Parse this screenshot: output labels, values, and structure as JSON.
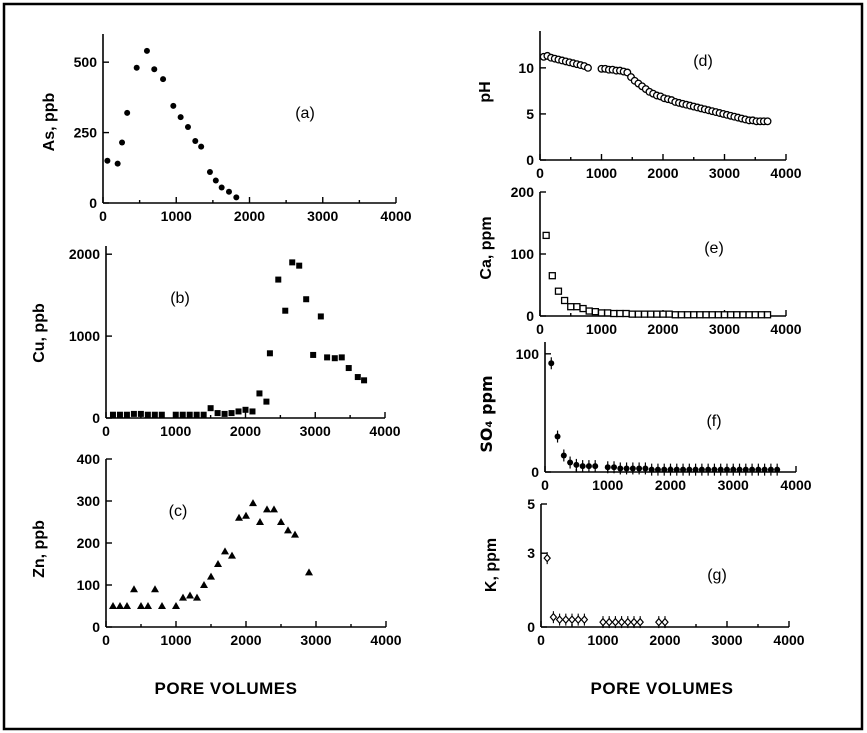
{
  "figure": {
    "x_title_left": "PORE VOLUMES",
    "x_title_right": "PORE VOLUMES"
  },
  "chart_data": [
    {
      "id": "a",
      "label": "(a)",
      "type": "scatter",
      "xlabel": "",
      "ylabel": "As, ppb",
      "xlim": [
        0,
        4000
      ],
      "ylim": [
        0,
        600
      ],
      "xticks": [
        0,
        1000,
        2000,
        3000,
        4000
      ],
      "yticks": [
        0,
        250,
        500
      ],
      "marker": "filled-circle",
      "x": [
        60,
        200,
        260,
        330,
        460,
        600,
        700,
        820,
        960,
        1060,
        1160,
        1260,
        1340,
        1460,
        1540,
        1620,
        1720,
        1820
      ],
      "y": [
        150,
        140,
        215,
        320,
        480,
        540,
        475,
        440,
        345,
        305,
        270,
        220,
        200,
        110,
        80,
        55,
        40,
        20
      ]
    },
    {
      "id": "b",
      "label": "(b)",
      "type": "scatter",
      "xlabel": "",
      "ylabel": "Cu, ppb",
      "xlim": [
        0,
        4000
      ],
      "ylim": [
        0,
        2100
      ],
      "xticks": [
        0,
        1000,
        2000,
        3000,
        4000
      ],
      "yticks": [
        0,
        1000,
        2000
      ],
      "marker": "filled-square",
      "x": [
        100,
        200,
        300,
        400,
        500,
        600,
        700,
        800,
        1000,
        1100,
        1200,
        1300,
        1400,
        1500,
        1600,
        1700,
        1800,
        1900,
        2000,
        2100,
        2200,
        2300,
        2350,
        2470,
        2570,
        2670,
        2770,
        2870,
        2970,
        3080,
        3170,
        3280,
        3380,
        3480,
        3610,
        3700
      ],
      "y": [
        40,
        40,
        40,
        50,
        50,
        40,
        40,
        40,
        40,
        40,
        40,
        40,
        40,
        120,
        60,
        50,
        60,
        80,
        100,
        80,
        300,
        200,
        790,
        1690,
        1310,
        1900,
        1860,
        1450,
        770,
        1240,
        740,
        730,
        740,
        610,
        500,
        460
      ]
    },
    {
      "id": "c",
      "label": "(c)",
      "type": "scatter",
      "xlabel": "PORE VOLUMES",
      "ylabel": "Zn, ppb",
      "xlim": [
        0,
        4000
      ],
      "ylim": [
        0,
        400
      ],
      "xticks": [
        0,
        1000,
        2000,
        3000,
        4000
      ],
      "yticks": [
        0,
        100,
        200,
        300,
        400
      ],
      "marker": "filled-triangle",
      "x": [
        100,
        200,
        300,
        400,
        500,
        600,
        700,
        800,
        1000,
        1100,
        1200,
        1300,
        1400,
        1500,
        1600,
        1700,
        1800,
        1900,
        2000,
        2100,
        2200,
        2300,
        2400,
        2500,
        2600,
        2700,
        2900
      ],
      "y": [
        50,
        50,
        50,
        90,
        50,
        50,
        90,
        50,
        50,
        70,
        75,
        70,
        100,
        120,
        150,
        180,
        170,
        260,
        265,
        295,
        250,
        280,
        280,
        250,
        230,
        220,
        130
      ]
    },
    {
      "id": "d",
      "label": "(d)",
      "type": "scatter",
      "xlabel": "",
      "ylabel": "pH",
      "xlim": [
        0,
        4000
      ],
      "ylim": [
        0,
        14
      ],
      "xticks": [
        0,
        1000,
        2000,
        3000,
        4000
      ],
      "yticks": [
        0,
        5,
        10
      ],
      "marker": "open-circle",
      "x": [
        60,
        120,
        180,
        240,
        300,
        360,
        420,
        480,
        540,
        600,
        660,
        720,
        780,
        1000,
        1060,
        1120,
        1180,
        1240,
        1300,
        1360,
        1420,
        1480,
        1540,
        1600,
        1660,
        1720,
        1780,
        1840,
        1900,
        1960,
        2020,
        2080,
        2140,
        2200,
        2260,
        2320,
        2380,
        2440,
        2500,
        2560,
        2620,
        2680,
        2740,
        2800,
        2860,
        2920,
        2980,
        3040,
        3100,
        3160,
        3220,
        3280,
        3340,
        3400,
        3460,
        3520,
        3580,
        3640,
        3700
      ],
      "y": [
        11.2,
        11.3,
        11.1,
        11.0,
        10.9,
        10.8,
        10.7,
        10.6,
        10.5,
        10.4,
        10.3,
        10.2,
        10.0,
        9.9,
        9.9,
        9.8,
        9.8,
        9.7,
        9.7,
        9.6,
        9.5,
        9.0,
        8.6,
        8.3,
        8.0,
        7.7,
        7.4,
        7.2,
        7.0,
        6.9,
        6.7,
        6.6,
        6.5,
        6.3,
        6.2,
        6.1,
        6.0,
        5.9,
        5.8,
        5.7,
        5.6,
        5.5,
        5.4,
        5.3,
        5.2,
        5.1,
        5.0,
        4.9,
        4.8,
        4.7,
        4.6,
        4.5,
        4.4,
        4.3,
        4.3,
        4.2,
        4.2,
        4.2,
        4.2
      ]
    },
    {
      "id": "e",
      "label": "(e)",
      "type": "scatter",
      "xlabel": "",
      "ylabel": "Ca, ppm",
      "xlim": [
        0,
        4000
      ],
      "ylim": [
        0,
        200
      ],
      "xticks": [
        0,
        1000,
        2000,
        3000,
        4000
      ],
      "yticks": [
        0,
        100,
        200
      ],
      "marker": "open-square",
      "x": [
        100,
        200,
        300,
        400,
        500,
        600,
        700,
        800,
        900,
        1000,
        1100,
        1200,
        1300,
        1400,
        1500,
        1600,
        1700,
        1800,
        1900,
        2000,
        2100,
        2200,
        2300,
        2400,
        2500,
        2600,
        2700,
        2800,
        2900,
        3000,
        3100,
        3200,
        3300,
        3400,
        3500,
        3600,
        3700
      ],
      "y": [
        130,
        65,
        40,
        25,
        15,
        15,
        12,
        8,
        7,
        5,
        5,
        4,
        4,
        4,
        3,
        3,
        3,
        3,
        3,
        3,
        3,
        2,
        2,
        2,
        2,
        2,
        2,
        2,
        2,
        2,
        2,
        2,
        2,
        2,
        2,
        2,
        2
      ]
    },
    {
      "id": "f",
      "label": "(f)",
      "type": "scatter",
      "xlabel": "",
      "ylabel": "SO₄ ppm",
      "xlim": [
        0,
        4000
      ],
      "ylim": [
        0,
        110
      ],
      "xticks": [
        0,
        1000,
        2000,
        3000,
        4000
      ],
      "yticks": [
        0,
        100
      ],
      "marker": "filled-circle-errorbar",
      "x": [
        100,
        200,
        300,
        400,
        500,
        600,
        700,
        800,
        1000,
        1100,
        1200,
        1300,
        1400,
        1500,
        1600,
        1700,
        1800,
        1900,
        2000,
        2100,
        2200,
        2300,
        2400,
        2500,
        2600,
        2700,
        2800,
        2900,
        3000,
        3100,
        3200,
        3300,
        3400,
        3500,
        3600,
        3700
      ],
      "y": [
        92,
        30,
        14,
        8,
        6,
        5,
        5,
        5,
        4,
        4,
        3,
        3,
        3,
        3,
        3,
        2,
        2,
        2,
        2,
        2,
        2,
        2,
        2,
        2,
        2,
        2,
        2,
        2,
        2,
        2,
        2,
        2,
        2,
        2,
        2,
        2
      ]
    },
    {
      "id": "g",
      "label": "(g)",
      "type": "scatter",
      "xlabel": "PORE VOLUMES",
      "ylabel": "K, ppm",
      "xlim": [
        0,
        4000
      ],
      "ylim": [
        0,
        5
      ],
      "xticks": [
        0,
        1000,
        2000,
        3000,
        4000
      ],
      "yticks": [
        0,
        3,
        5
      ],
      "marker": "open-diamond",
      "x": [
        100,
        200,
        300,
        400,
        500,
        600,
        700,
        1000,
        1100,
        1200,
        1300,
        1400,
        1500,
        1600,
        1900,
        2000
      ],
      "y": [
        2.8,
        0.4,
        0.3,
        0.3,
        0.3,
        0.3,
        0.3,
        0.2,
        0.2,
        0.2,
        0.2,
        0.2,
        0.2,
        0.2,
        0.2,
        0.2
      ]
    }
  ]
}
